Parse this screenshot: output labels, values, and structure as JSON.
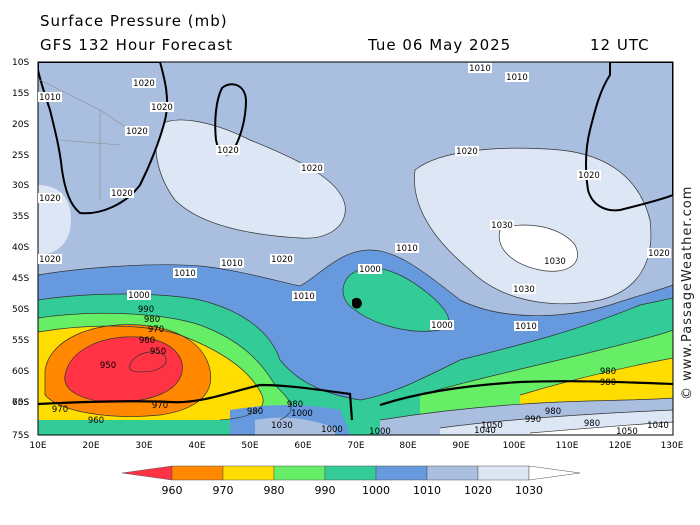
{
  "header": {
    "title": "Surface Pressure (mb)",
    "subtitle": "GFS 132 Hour Forecast",
    "date": "Tue 06 May 2025",
    "time": "12 UTC"
  },
  "watermark": "© www.PassageWeather.com",
  "lat_labels": [
    "10S",
    "15S",
    "20S",
    "25S",
    "30S",
    "35S",
    "40S",
    "45S",
    "50S",
    "55S",
    "60S",
    "65S",
    "70S",
    "75S"
  ],
  "lon_labels": [
    "10E",
    "20E",
    "30E",
    "40E",
    "50E",
    "60E",
    "70E",
    "80E",
    "90E",
    "100E",
    "110E",
    "120E",
    "130E"
  ],
  "isobar_labels": {
    "l1010_a": "1010",
    "l1010_b": "1010",
    "l1010_c": "1010",
    "l1010_d": "1010",
    "l1010_e": "1010",
    "l1010_f": "1010",
    "l1010_g": "1010",
    "l1010_h": "1010",
    "l1020_a": "1020",
    "l1020_b": "1020",
    "l1020_c": "1020",
    "l1020_d": "1020",
    "l1020_e": "1020",
    "l1020_f": "1020",
    "l1020_g": "1020",
    "l1020_h": "1020",
    "l1020_i": "1020",
    "l1020_j": "1020",
    "l1020_k": "1020",
    "l1020_l": "1020",
    "l1030_a": "1030",
    "l1030_b": "1030",
    "l1030_c": "1030",
    "l1030_d": "1030",
    "l1000_a": "1000",
    "l1000_b": "1000",
    "l1000_c": "1000",
    "l1000_d": "1000",
    "l1000_e": "1000",
    "l1000_f": "1000",
    "l990_a": "990",
    "l990_b": "990",
    "l980_a": "980",
    "l980_b": "980",
    "l980_c": "980",
    "l980_d": "980",
    "l980_e": "980",
    "l980_f": "980",
    "l980_g": "980",
    "l970_a": "970",
    "l970_b": "970",
    "l970_c": "970",
    "l960_a": "960",
    "l960_b": "960",
    "l950_a": "950",
    "l950_b": "950",
    "l1040_a": "1040",
    "l1040_b": "1040",
    "l1050_a": "1050",
    "l1050_b": "1050"
  },
  "legend": {
    "labels": [
      "960",
      "970",
      "980",
      "990",
      "1000",
      "1010",
      "1020",
      "1030"
    ],
    "colors": [
      "#ff3344",
      "#ff8800",
      "#ffdd00",
      "#66ee66",
      "#33cc99",
      "#6699dd",
      "#aabfe0",
      "#dde6f5",
      "#ffffff"
    ]
  }
}
